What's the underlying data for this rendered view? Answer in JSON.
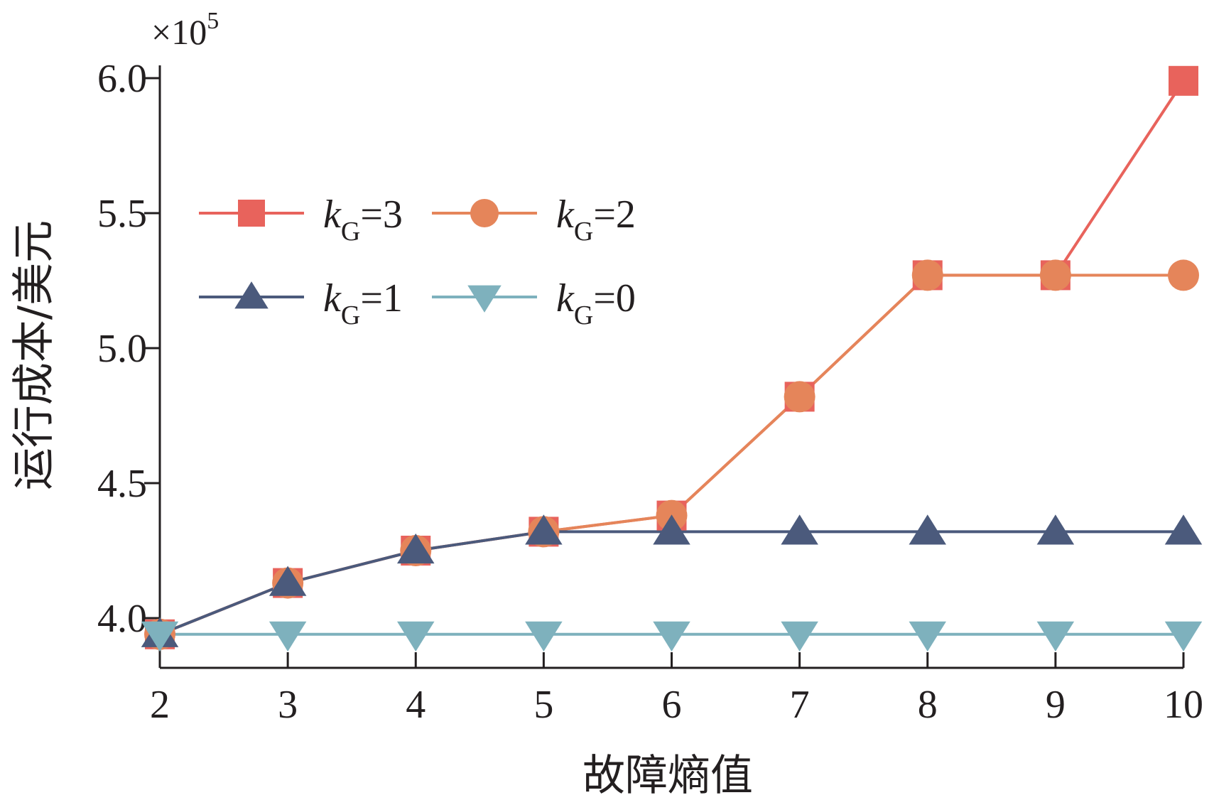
{
  "chart_data": {
    "type": "line",
    "title": "",
    "xlabel": "故障熵值",
    "ylabel": "运行成本/美元",
    "y_multiplier": {
      "base": "×10",
      "exponent": "5"
    },
    "x": [
      2,
      3,
      4,
      5,
      6,
      7,
      8,
      9,
      10
    ],
    "x_ticks": [
      "2",
      "3",
      "4",
      "5",
      "6",
      "7",
      "8",
      "9",
      "10"
    ],
    "y_ticks": [
      "4.0",
      "4.5",
      "5.0",
      "5.5",
      "6.0"
    ],
    "y_tick_values": [
      4.0,
      4.5,
      5.0,
      5.5,
      6.0
    ],
    "xlim": [
      2,
      10
    ],
    "ylim": [
      3.8,
      6.0
    ],
    "grid": false,
    "legend_position": "upper-left",
    "series": [
      {
        "name": "kG=3",
        "legend": {
          "k": "k",
          "sub": "G",
          "rest": "=3"
        },
        "color": "#e8635c",
        "marker": "square",
        "values": [
          3.94,
          4.13,
          4.25,
          4.32,
          4.38,
          4.82,
          5.27,
          5.27,
          5.99
        ]
      },
      {
        "name": "kG=2",
        "legend": {
          "k": "k",
          "sub": "G",
          "rest": "=2"
        },
        "color": "#e5855a",
        "marker": "circle",
        "values": [
          3.94,
          4.13,
          4.25,
          4.32,
          4.38,
          4.82,
          5.27,
          5.27,
          5.27
        ]
      },
      {
        "name": "kG=1",
        "legend": {
          "k": "k",
          "sub": "G",
          "rest": "=1"
        },
        "color": "#4b5a7c",
        "marker": "triangle-up",
        "values": [
          3.94,
          4.13,
          4.25,
          4.32,
          4.32,
          4.32,
          4.32,
          4.32,
          4.32
        ]
      },
      {
        "name": "kG=0",
        "legend": {
          "k": "k",
          "sub": "G",
          "rest": "=0"
        },
        "color": "#7eb1bd",
        "marker": "triangle-down",
        "values": [
          3.94,
          3.94,
          3.94,
          3.94,
          3.94,
          3.94,
          3.94,
          3.94,
          3.94
        ]
      }
    ]
  }
}
